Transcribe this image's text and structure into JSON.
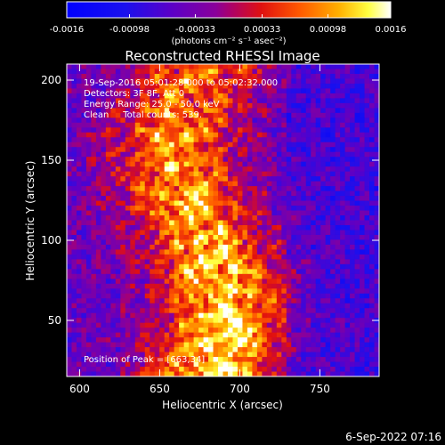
{
  "colorbar": {
    "ticks": [
      "-0.0016",
      "-0.00098",
      "-0.00033",
      "0.00033",
      "0.00098",
      "0.0016"
    ],
    "units": "(photons cm⁻² s⁻¹ asec⁻²)",
    "range": [
      -0.0016,
      0.0016
    ]
  },
  "plot": {
    "title": "Reconstructed RHESSI Image",
    "xlabel": "Heliocentric X (arcsec)",
    "ylabel": "Heliocentric Y (arcsec)",
    "xticks": [
      "600",
      "650",
      "700",
      "750"
    ],
    "yticks": [
      "50",
      "100",
      "150",
      "200"
    ],
    "xlim": [
      592,
      787
    ],
    "ylim": [
      15,
      210
    ],
    "info_lines": [
      "19-Sep-2016 05:01:28.000 to 05:02:32.000",
      "Detectors: 3F 8F, Att 0",
      "Energy Range: 25.0 - 50.0 keV",
      "Clean     Total counts: 539."
    ],
    "peak_label": "Position of Peak = [663,34]"
  },
  "footer": {
    "timestamp": "6-Sep-2022 07:16"
  },
  "chart_data": {
    "type": "heatmap",
    "title": "Reconstructed RHESSI Image",
    "xlabel": "Heliocentric X (arcsec)",
    "ylabel": "Heliocentric Y (arcsec)",
    "xlim": [
      592,
      787
    ],
    "ylim": [
      15,
      210
    ],
    "color_range": [
      -0.0016,
      0.0016
    ],
    "colorbar_ticks": [
      -0.0016,
      -0.00098,
      -0.00033,
      0.00033,
      0.00098,
      0.0016
    ],
    "peak_position": [
      663,
      34
    ]
  }
}
